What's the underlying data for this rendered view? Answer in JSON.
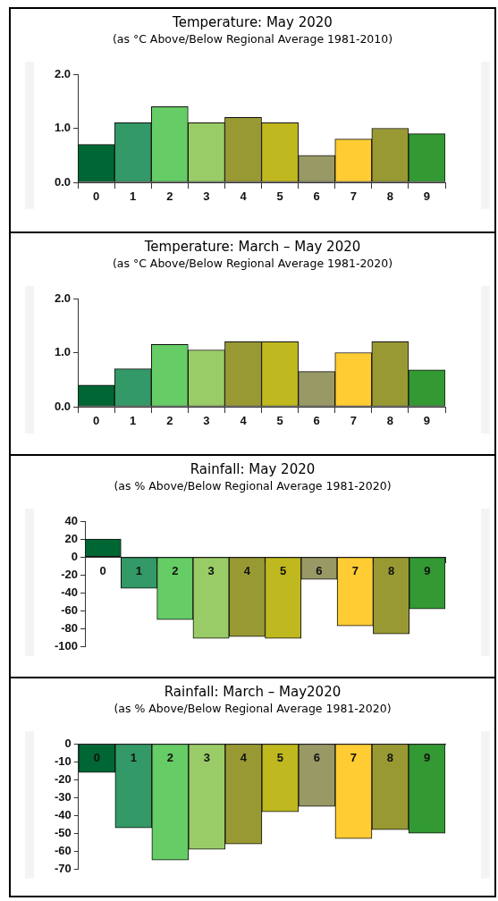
{
  "chart_data": [
    {
      "type": "bar",
      "title": "Temperature: May 2020",
      "subtitle": "(as °C Above/Below Regional Average 1981-2010)",
      "categories": [
        "0",
        "1",
        "2",
        "3",
        "4",
        "5",
        "6",
        "7",
        "8",
        "9"
      ],
      "values": [
        0.7,
        1.1,
        1.4,
        1.1,
        1.2,
        1.1,
        0.5,
        0.8,
        1.0,
        0.9
      ],
      "colors": [
        "#006633",
        "#339966",
        "#66cc66",
        "#99cc66",
        "#999933",
        "#bfb81f",
        "#999966",
        "#ffcc33",
        "#999933",
        "#339933"
      ],
      "ylim": [
        0,
        2
      ],
      "yticks": [
        {
          "value": 0,
          "label": "0.0"
        },
        {
          "value": 1,
          "label": "1.0"
        },
        {
          "value": 2,
          "label": "2.0"
        }
      ],
      "grid": false
    },
    {
      "type": "bar",
      "title": "Temperature: March – May 2020",
      "subtitle": "(as °C Above/Below Regional Average 1981-2020)",
      "categories": [
        "0",
        "1",
        "2",
        "3",
        "4",
        "5",
        "6",
        "7",
        "8",
        "9"
      ],
      "values": [
        0.4,
        0.7,
        1.15,
        1.05,
        1.2,
        1.2,
        0.65,
        1.0,
        1.2,
        0.68
      ],
      "colors": [
        "#006633",
        "#339966",
        "#66cc66",
        "#99cc66",
        "#999933",
        "#bfb81f",
        "#999966",
        "#ffcc33",
        "#999933",
        "#339933"
      ],
      "ylim": [
        0,
        2
      ],
      "yticks": [
        {
          "value": 0,
          "label": "0.0"
        },
        {
          "value": 1,
          "label": "1.0"
        },
        {
          "value": 2,
          "label": "2.0"
        }
      ],
      "grid": false
    },
    {
      "type": "bar",
      "title": "Rainfall: May 2020",
      "subtitle": "(as % Above/Below Regional Average 1981-2020)",
      "categories": [
        "0",
        "1",
        "2",
        "3",
        "4",
        "5",
        "6",
        "7",
        "8",
        "9"
      ],
      "values": [
        20,
        -35,
        -70,
        -91,
        -89,
        -91,
        -25,
        -77,
        -86,
        -58
      ],
      "colors": [
        "#006633",
        "#339966",
        "#66cc66",
        "#99cc66",
        "#999933",
        "#bfb81f",
        "#999966",
        "#ffcc33",
        "#999933",
        "#339933"
      ],
      "ylim": [
        -100,
        40
      ],
      "yticks": [
        -100,
        -80,
        -60,
        -40,
        -20,
        0,
        20,
        40
      ],
      "grid": false
    },
    {
      "type": "bar",
      "title": "Rainfall: March – May2020",
      "subtitle": "(as % Above/Below Regional Average 1981-2020)",
      "categories": [
        "0",
        "1",
        "2",
        "3",
        "4",
        "5",
        "6",
        "7",
        "8",
        "9"
      ],
      "values": [
        -16,
        -47,
        -65,
        -59,
        -56,
        -38,
        -35,
        -53,
        -48,
        -50
      ],
      "colors": [
        "#006633",
        "#339966",
        "#66cc66",
        "#99cc66",
        "#999933",
        "#bfb81f",
        "#999966",
        "#ffcc33",
        "#999933",
        "#339933"
      ],
      "ylim": [
        -70,
        0
      ],
      "yticks": [
        -70,
        -60,
        -50,
        -40,
        -30,
        -20,
        -10,
        0
      ],
      "grid": false
    }
  ]
}
